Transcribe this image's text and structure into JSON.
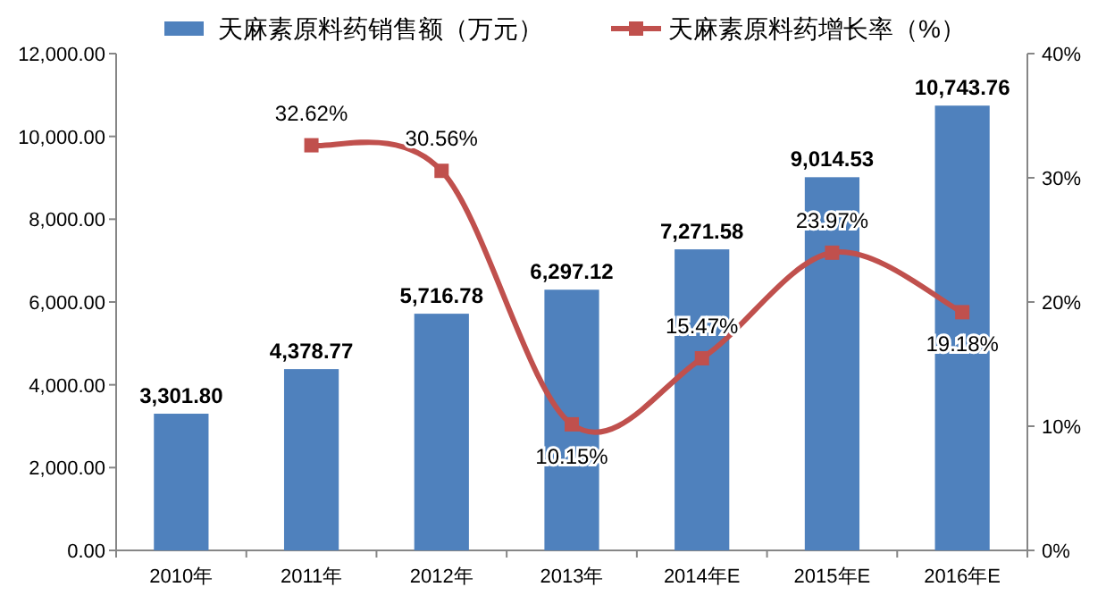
{
  "chart_data": {
    "type": "bar",
    "categories": [
      "2010年",
      "2011年",
      "2012年",
      "2013年",
      "2014年E",
      "2015年E",
      "2016年E"
    ],
    "legend": "top",
    "ylim": [
      0,
      12000
    ],
    "yticks": [
      {
        "value": 0,
        "label": "0.00"
      },
      {
        "value": 2000,
        "label": "2,000.00"
      },
      {
        "value": 4000,
        "label": "4,000.00"
      },
      {
        "value": 6000,
        "label": "6,000.00"
      },
      {
        "value": 8000,
        "label": "8,000.00"
      },
      {
        "value": 10000,
        "label": "10,000.00"
      },
      {
        "value": 12000,
        "label": "12,000.00"
      }
    ],
    "y2lim": [
      0,
      40
    ],
    "y2ticks": [
      {
        "value": 0,
        "label": "0%"
      },
      {
        "value": 10,
        "label": "10%"
      },
      {
        "value": 20,
        "label": "20%"
      },
      {
        "value": 30,
        "label": "30%"
      },
      {
        "value": 40,
        "label": "40%"
      }
    ],
    "series": [
      {
        "name": "天麻素原料药销售额（万元）",
        "color": "#4f81bd",
        "values": [
          3301.8,
          4378.77,
          5716.78,
          6297.12,
          7271.58,
          9014.53,
          10743.76
        ],
        "value_labels": [
          "3,301.80",
          "4,378.77",
          "5,716.78",
          "6,297.12",
          "7,271.58",
          "9,014.53",
          "10,743.76"
        ]
      },
      {
        "name": "天麻素原料药增长率（%）",
        "type": "line",
        "axis": "y2",
        "marker": "square",
        "color": "#c0504d",
        "values": [
          null,
          32.62,
          30.56,
          10.15,
          15.47,
          23.97,
          19.18
        ],
        "value_labels": [
          null,
          "32.62%",
          "30.56%",
          "10.15%",
          "15.47%",
          "23.97%",
          "19.18%"
        ]
      }
    ]
  }
}
